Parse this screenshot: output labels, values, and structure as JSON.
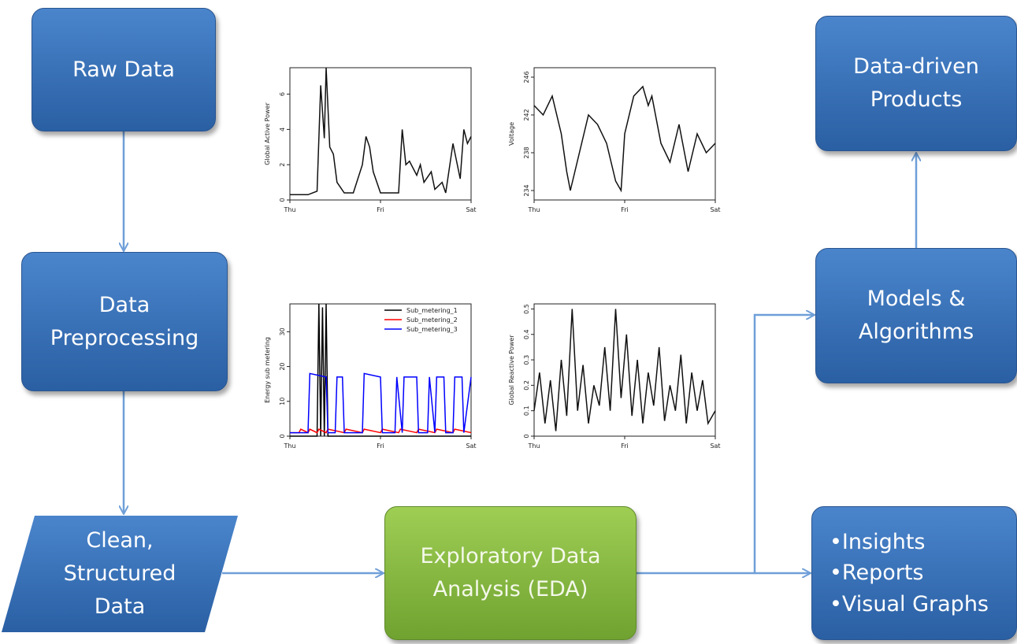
{
  "nodes": {
    "raw_data": [
      "Raw Data"
    ],
    "preprocessing": [
      "Data",
      "Preprocessing"
    ],
    "clean_data": [
      "Clean,",
      "Structured",
      "Data"
    ],
    "eda": [
      "Exploratory Data",
      "Analysis (EDA)"
    ],
    "models": [
      "Models &",
      "Algorithms"
    ],
    "products": [
      "Data-driven",
      "Products"
    ],
    "outputs": [
      "•Insights",
      "•Reports",
      "•Visual Graphs"
    ]
  },
  "colors": {
    "box_blue": "#3a74bd",
    "box_green": "#8cbd45",
    "arrow": "#6f9fd8"
  },
  "chart_data": [
    {
      "type": "line",
      "ylabel": "Global Active Power",
      "xticks": [
        "Thu",
        "Fri",
        "Sat"
      ],
      "yticks": [
        0,
        2,
        4,
        6
      ],
      "ylim": [
        0,
        7.5
      ],
      "x": [
        0,
        0.1,
        0.15,
        0.17,
        0.19,
        0.2,
        0.22,
        0.24,
        0.26,
        0.3,
        0.35,
        0.4,
        0.42,
        0.44,
        0.46,
        0.5,
        0.55,
        0.6,
        0.62,
        0.64,
        0.66,
        0.7,
        0.72,
        0.74,
        0.78,
        0.8,
        0.84,
        0.86,
        0.9,
        0.92,
        0.94,
        0.96,
        0.98,
        1.0
      ],
      "series": [
        {
          "values": [
            0.3,
            0.3,
            0.5,
            6.5,
            3.5,
            7.5,
            3.0,
            2.6,
            1.0,
            0.4,
            0.4,
            2.0,
            3.6,
            3.0,
            1.6,
            0.4,
            0.4,
            0.4,
            4.0,
            2.0,
            2.2,
            1.4,
            2.0,
            1.0,
            1.6,
            0.6,
            1.0,
            0.4,
            3.2,
            2.2,
            1.2,
            4.0,
            3.2,
            3.6
          ]
        }
      ]
    },
    {
      "type": "line",
      "ylabel": "Voltage",
      "xticks": [
        "Thu",
        "Fri",
        "Sat"
      ],
      "yticks": [
        234,
        238,
        242,
        246
      ],
      "ylim": [
        233,
        247
      ],
      "x": [
        0,
        0.05,
        0.1,
        0.15,
        0.18,
        0.2,
        0.25,
        0.3,
        0.35,
        0.4,
        0.45,
        0.48,
        0.5,
        0.55,
        0.6,
        0.63,
        0.65,
        0.7,
        0.75,
        0.8,
        0.85,
        0.9,
        0.95,
        1.0
      ],
      "series": [
        {
          "values": [
            243,
            242,
            244,
            240,
            236,
            234,
            238,
            242,
            241,
            239,
            235,
            234,
            240,
            244,
            245,
            243,
            244,
            239,
            237,
            241,
            236,
            240,
            238,
            239
          ]
        }
      ]
    },
    {
      "type": "line",
      "ylabel": "Energy sub metering",
      "xticks": [
        "Thu",
        "Fri",
        "Sat"
      ],
      "yticks": [
        0,
        10,
        20,
        30
      ],
      "ylim": [
        0,
        38
      ],
      "series": [
        {
          "name": "Sub_metering_1",
          "color": "#000000",
          "x": [
            0,
            0.15,
            0.16,
            0.17,
            0.18,
            0.19,
            0.2,
            0.21,
            0.22,
            1.0
          ],
          "values": [
            0,
            0,
            38,
            0,
            37,
            0,
            38,
            0,
            0,
            0
          ]
        },
        {
          "name": "Sub_metering_2",
          "color": "#ff0000",
          "x": [
            0,
            0.05,
            0.06,
            0.1,
            0.11,
            0.15,
            0.16,
            0.2,
            0.21,
            0.3,
            0.31,
            0.4,
            0.41,
            0.5,
            0.51,
            0.6,
            0.61,
            0.7,
            0.71,
            0.8,
            0.81,
            0.9,
            0.91,
            1.0
          ],
          "values": [
            1,
            1,
            2,
            1,
            2,
            1,
            2,
            1,
            2,
            1,
            2,
            1,
            2,
            1,
            2,
            1,
            2,
            1,
            2,
            1,
            2,
            1,
            2,
            1
          ]
        },
        {
          "name": "Sub_metering_3",
          "color": "#0000ff",
          "x": [
            0,
            0.1,
            0.11,
            0.2,
            0.21,
            0.25,
            0.26,
            0.29,
            0.3,
            0.4,
            0.41,
            0.5,
            0.51,
            0.58,
            0.59,
            0.62,
            0.63,
            0.7,
            0.71,
            0.76,
            0.77,
            0.8,
            0.81,
            0.85,
            0.86,
            0.9,
            0.91,
            0.95,
            0.96,
            1.0
          ],
          "values": [
            1,
            1,
            18,
            17,
            1,
            1,
            17,
            17,
            1,
            1,
            18,
            17,
            1,
            1,
            17,
            1,
            17,
            17,
            1,
            1,
            17,
            1,
            17,
            17,
            1,
            1,
            17,
            17,
            1,
            17
          ]
        }
      ]
    },
    {
      "type": "line",
      "ylabel": "Global Reactive Power",
      "xticks": [
        "Thu",
        "Fri",
        "Sat"
      ],
      "yticks": [
        0.0,
        0.1,
        0.2,
        0.3,
        0.4,
        0.5
      ],
      "ylim": [
        0,
        0.52
      ],
      "x": [
        0,
        0.03,
        0.06,
        0.09,
        0.12,
        0.15,
        0.18,
        0.21,
        0.24,
        0.27,
        0.3,
        0.33,
        0.36,
        0.39,
        0.42,
        0.45,
        0.48,
        0.51,
        0.54,
        0.57,
        0.6,
        0.63,
        0.66,
        0.69,
        0.72,
        0.75,
        0.78,
        0.81,
        0.84,
        0.87,
        0.9,
        0.93,
        0.96,
        1.0
      ],
      "series": [
        {
          "values": [
            0.1,
            0.25,
            0.05,
            0.22,
            0.02,
            0.3,
            0.08,
            0.5,
            0.1,
            0.28,
            0.05,
            0.2,
            0.12,
            0.35,
            0.1,
            0.5,
            0.15,
            0.4,
            0.08,
            0.3,
            0.05,
            0.25,
            0.12,
            0.35,
            0.06,
            0.2,
            0.1,
            0.32,
            0.05,
            0.25,
            0.1,
            0.22,
            0.05,
            0.1
          ]
        }
      ]
    }
  ]
}
